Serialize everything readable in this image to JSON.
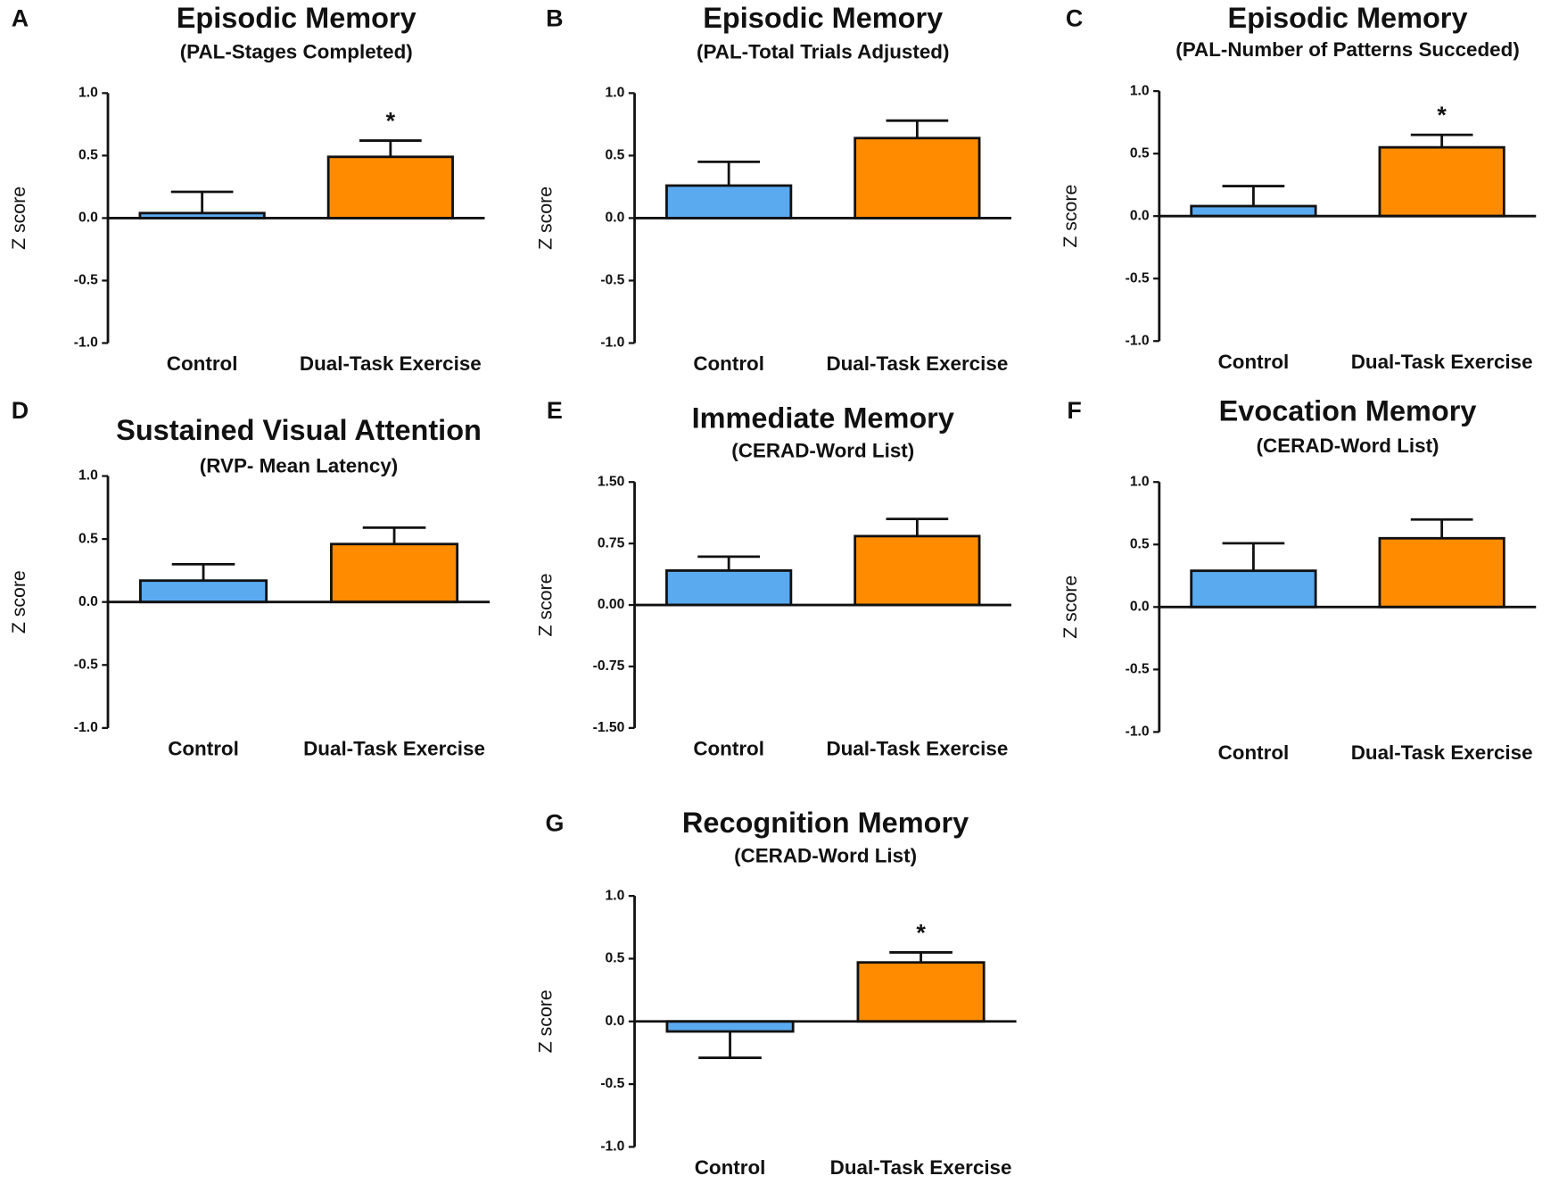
{
  "chart_data": [
    {
      "type": "bar",
      "panel": "A",
      "title": "Episodic Memory",
      "subtitle": "(PAL-Stages Completed)",
      "ylabel": "Z score",
      "categories": [
        "Control",
        "Dual-Task Exercise"
      ],
      "values": [
        0.04,
        0.49
      ],
      "errors": [
        0.17,
        0.13
      ],
      "colors": [
        "#5aaaf0",
        "#ff8c00"
      ],
      "ylim": [
        -1,
        1
      ],
      "yticks": [
        {
          "value": -1,
          "label": "-1.0"
        },
        -0.5,
        {
          "value": 0,
          "label": "0.0"
        },
        0.5,
        {
          "value": 1,
          "label": "1.0"
        }
      ],
      "annotation": {
        "text": "*",
        "category": "Dual-Task Exercise"
      }
    },
    {
      "type": "bar",
      "panel": "B",
      "title": "Episodic Memory",
      "subtitle": "(PAL-Total Trials Adjusted)",
      "ylabel": "Z score",
      "categories": [
        "Control",
        "Dual-Task Exercise"
      ],
      "values": [
        0.26,
        0.64
      ],
      "errors": [
        0.19,
        0.14
      ],
      "colors": [
        "#5aaaf0",
        "#ff8c00"
      ],
      "ylim": [
        -1,
        1
      ],
      "yticks": [
        {
          "value": -1,
          "label": "-1.0"
        },
        -0.5,
        {
          "value": 0,
          "label": "0.0"
        },
        0.5,
        {
          "value": 1,
          "label": "1.0"
        }
      ]
    },
    {
      "type": "bar",
      "panel": "C",
      "title": "Episodic Memory",
      "subtitle": "(PAL-Number of Patterns Succeded)",
      "ylabel": "Z score",
      "categories": [
        "Control",
        "Dual-Task Exercise"
      ],
      "values": [
        0.08,
        0.55
      ],
      "errors": [
        0.16,
        0.1
      ],
      "colors": [
        "#5aaaf0",
        "#ff8c00"
      ],
      "ylim": [
        -1,
        1
      ],
      "yticks": [
        {
          "value": -1,
          "label": "-1.0"
        },
        -0.5,
        {
          "value": 0,
          "label": "0.0"
        },
        0.5,
        {
          "value": 1,
          "label": "1.0"
        }
      ],
      "annotation": {
        "text": "*",
        "category": "Dual-Task Exercise"
      }
    },
    {
      "type": "bar",
      "panel": "D",
      "title": "Sustained Visual Attention",
      "subtitle": "(RVP- Mean Latency)",
      "ylabel": "Z score",
      "categories": [
        "Control",
        "Dual-Task Exercise"
      ],
      "values": [
        0.17,
        0.46
      ],
      "errors": [
        0.13,
        0.13
      ],
      "colors": [
        "#5aaaf0",
        "#ff8c00"
      ],
      "ylim": [
        -1,
        1
      ],
      "yticks": [
        {
          "value": -1,
          "label": "-1.0"
        },
        -0.5,
        {
          "value": 0,
          "label": "0.0"
        },
        0.5,
        {
          "value": 1,
          "label": "1.0"
        }
      ]
    },
    {
      "type": "bar",
      "panel": "E",
      "title": "Immediate Memory",
      "subtitle": "(CERAD-Word List)",
      "ylabel": "Z score",
      "categories": [
        "Control",
        "Dual-Task Exercise"
      ],
      "values": [
        0.42,
        0.84
      ],
      "errors": [
        0.17,
        0.21
      ],
      "colors": [
        "#5aaaf0",
        "#ff8c00"
      ],
      "ylim": [
        -1.5,
        1.5
      ],
      "yticks": [
        {
          "value": -1.5,
          "label": "-1.50"
        },
        -0.75,
        {
          "value": 0,
          "label": "0.00"
        },
        0.75,
        {
          "value": 1.5,
          "label": "1.50"
        }
      ]
    },
    {
      "type": "bar",
      "panel": "F",
      "title": "Evocation Memory",
      "subtitle": "(CERAD-Word List)",
      "ylabel": "Z score",
      "categories": [
        "Control",
        "Dual-Task Exercise"
      ],
      "values": [
        0.29,
        0.55
      ],
      "errors": [
        0.22,
        0.15
      ],
      "colors": [
        "#5aaaf0",
        "#ff8c00"
      ],
      "ylim": [
        -1,
        1
      ],
      "yticks": [
        {
          "value": -1,
          "label": "-1.0"
        },
        -0.5,
        {
          "value": 0,
          "label": "0.0"
        },
        0.5,
        {
          "value": 1,
          "label": "1.0"
        }
      ]
    },
    {
      "type": "bar",
      "panel": "G",
      "title": "Recognition Memory",
      "subtitle": "(CERAD-Word List)",
      "ylabel": "Z score",
      "categories": [
        "Control",
        "Dual-Task Exercise"
      ],
      "values": [
        -0.08,
        0.47
      ],
      "errors": [
        0.21,
        0.08
      ],
      "colors": [
        "#5aaaf0",
        "#ff8c00"
      ],
      "ylim": [
        -1,
        1
      ],
      "yticks": [
        {
          "value": -1,
          "label": "-1.0"
        },
        -0.5,
        {
          "value": 0,
          "label": "0.0"
        },
        0.5,
        {
          "value": 1,
          "label": "1.0"
        }
      ],
      "annotation": {
        "text": "*",
        "category": "Dual-Task Exercise"
      }
    }
  ]
}
